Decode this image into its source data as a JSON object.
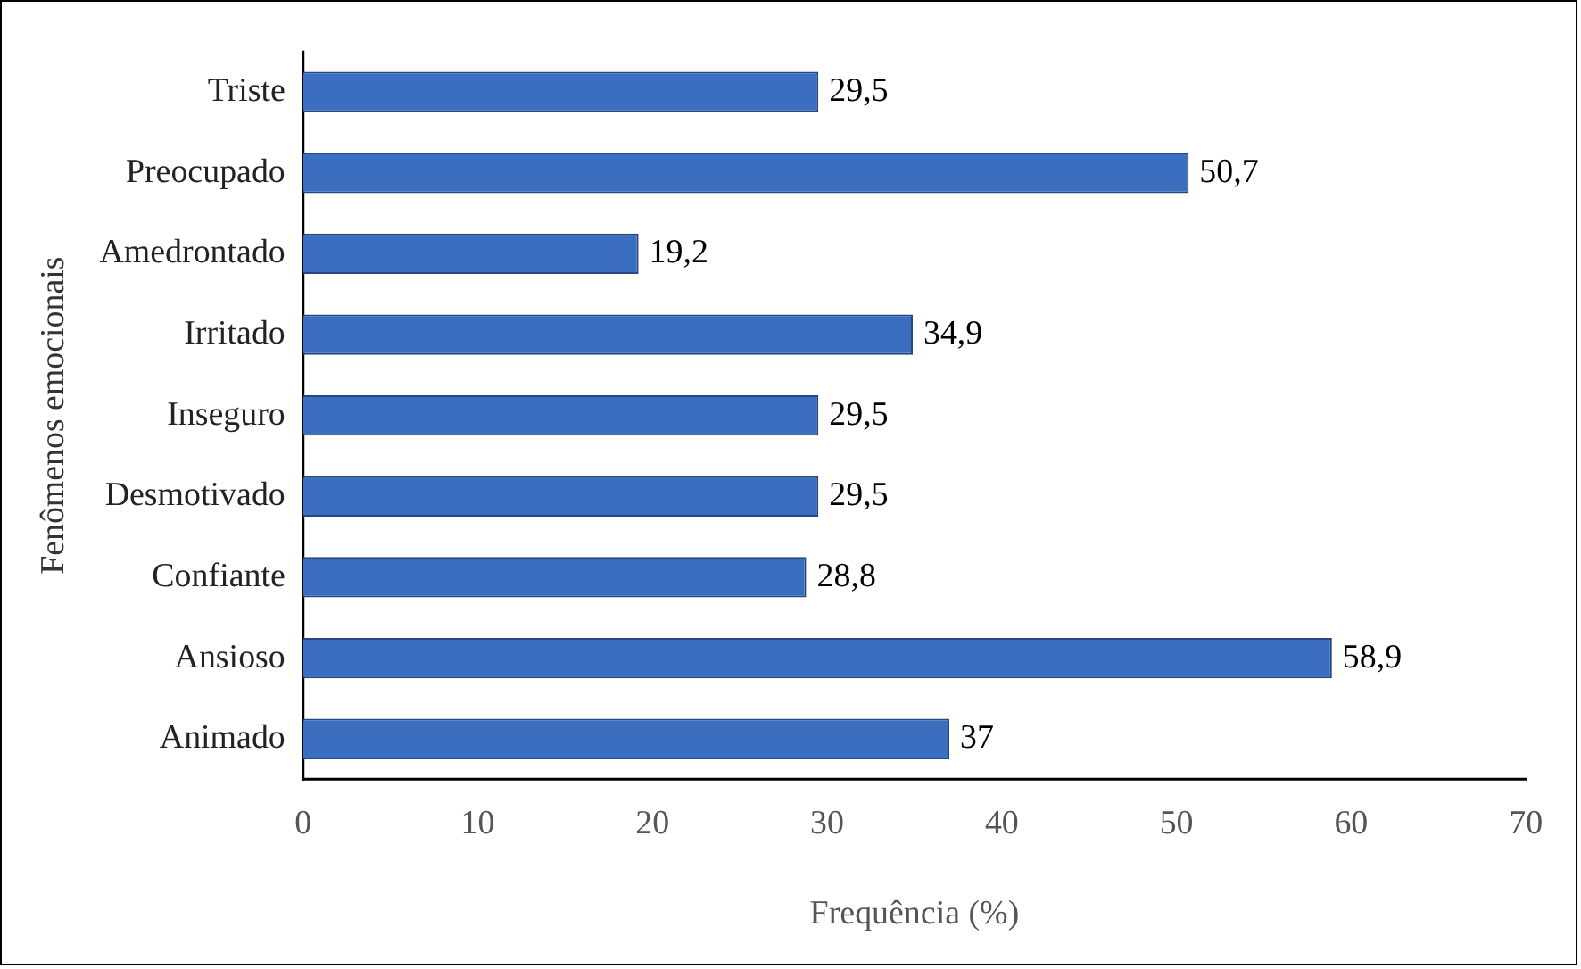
{
  "chart_data": {
    "type": "bar",
    "orientation": "horizontal",
    "xlabel": "Frequência (%)",
    "ylabel": "Fenômenos emocionais",
    "categories": [
      "Triste",
      "Preocupado",
      "Amedrontado",
      "Irritado",
      "Inseguro",
      "Desmotivado",
      "Confiante",
      "Ansioso",
      "Animado"
    ],
    "values": [
      29.5,
      50.7,
      19.2,
      34.9,
      29.5,
      29.5,
      28.8,
      58.9,
      37
    ],
    "value_labels": [
      "29,5",
      "50,7",
      "19,2",
      "34,9",
      "29,5",
      "29,5",
      "28,8",
      "58,9",
      "37"
    ],
    "color": "#3c6ebf",
    "xlim": [
      0,
      70
    ],
    "xticks": [
      0,
      10,
      20,
      30,
      40,
      50,
      60,
      70
    ],
    "grid": false,
    "legend": false
  }
}
